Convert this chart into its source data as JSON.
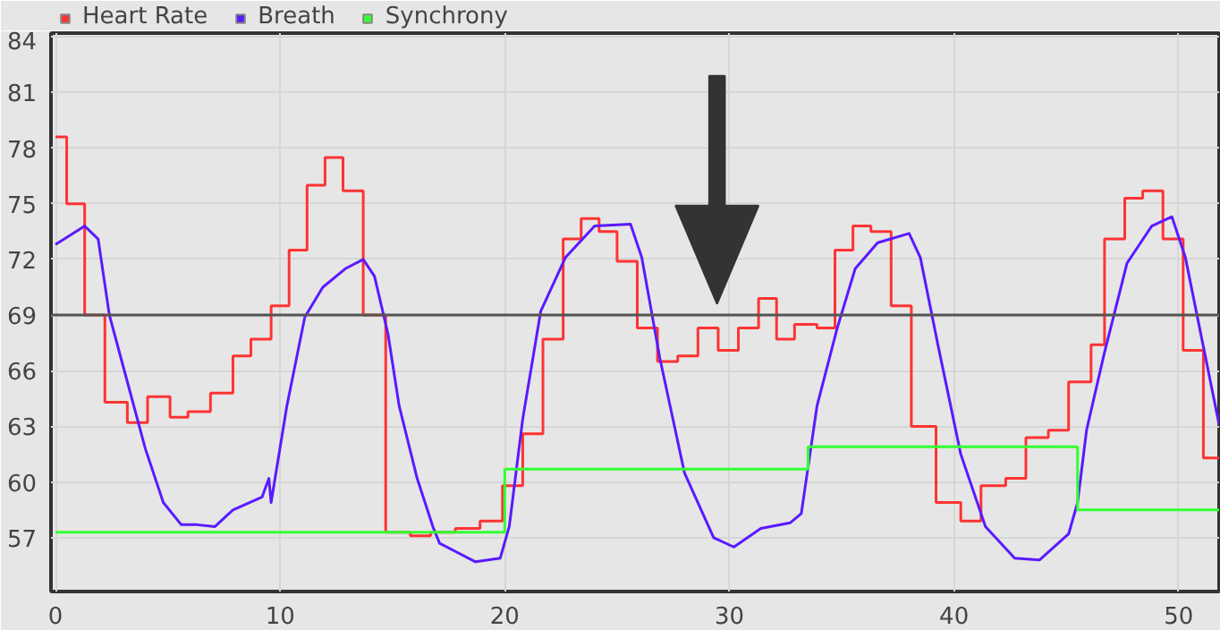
{
  "chart_data": {
    "type": "step",
    "xlim": [
      -0.2,
      51.8
    ],
    "ylim": [
      54.1,
      84.2
    ],
    "xticks": [
      0,
      10,
      20,
      30,
      40,
      50
    ],
    "yticks": [
      57,
      60,
      63,
      66,
      69,
      72,
      75,
      78,
      81,
      84
    ],
    "grid": true,
    "legend": "top left",
    "ref_lines": [
      {
        "axis": "y",
        "value": 69,
        "color": "#555555"
      }
    ],
    "series": [
      {
        "name": "Heart Rate",
        "color": "#ff3333",
        "x": [
          0.0,
          0.5,
          1.3,
          2.2,
          3.2,
          4.1,
          5.1,
          5.9,
          6.9,
          7.9,
          8.7,
          9.6,
          10.4,
          11.2,
          12.0,
          12.8,
          13.7,
          14.7,
          15.8,
          16.7,
          17.8,
          18.9,
          19.9,
          20.8,
          21.7,
          22.6,
          23.4,
          24.2,
          25.0,
          25.9,
          26.8,
          27.7,
          28.6,
          29.5,
          30.4,
          31.3,
          32.1,
          32.9,
          33.9,
          34.7,
          35.5,
          36.3,
          37.2,
          38.1,
          39.2,
          40.3,
          41.2,
          42.3,
          43.2,
          44.2,
          45.1,
          46.1,
          46.7,
          47.6,
          48.4,
          49.3,
          50.2,
          51.1,
          51.8
        ],
        "values": [
          78.6,
          75.0,
          69.0,
          64.3,
          63.2,
          64.6,
          63.5,
          63.8,
          64.8,
          66.8,
          67.7,
          69.5,
          72.5,
          76.0,
          77.5,
          75.7,
          69.0,
          57.3,
          57.1,
          57.3,
          57.5,
          57.9,
          59.8,
          62.6,
          67.7,
          73.1,
          74.2,
          73.5,
          71.9,
          68.3,
          66.5,
          66.8,
          68.3,
          67.1,
          68.3,
          69.9,
          67.7,
          68.5,
          68.3,
          72.5,
          73.8,
          73.5,
          69.5,
          63.0,
          58.9,
          57.9,
          59.8,
          60.2,
          62.4,
          62.8,
          65.4,
          67.4,
          73.1,
          75.3,
          75.7,
          73.1,
          67.1,
          61.3,
          61.3
        ]
      },
      {
        "name": "Breath",
        "color": "#5a1aff",
        "type": "line",
        "x": [
          0.0,
          1.3,
          1.9,
          2.4,
          3.2,
          4.0,
          4.8,
          5.6,
          6.3,
          7.1,
          7.9,
          9.2,
          9.5,
          9.6,
          10.3,
          11.1,
          11.9,
          12.9,
          13.7,
          14.2,
          14.8,
          15.3,
          16.1,
          16.8,
          17.1,
          18.7,
          19.8,
          20.2,
          20.8,
          21.6,
          22.7,
          24.0,
          25.6,
          26.1,
          26.9,
          28.0,
          29.3,
          30.2,
          31.4,
          32.7,
          33.2,
          33.9,
          34.8,
          35.6,
          36.6,
          38.0,
          38.5,
          39.3,
          40.3,
          41.4,
          42.7,
          43.8,
          45.1,
          45.5,
          45.9,
          46.7,
          47.7,
          48.8,
          49.7,
          50.3,
          51.1,
          51.8
        ],
        "values": [
          72.8,
          73.8,
          73.1,
          69.0,
          65.4,
          61.8,
          58.9,
          57.7,
          57.7,
          57.6,
          58.5,
          59.2,
          60.2,
          58.9,
          64.1,
          68.9,
          70.5,
          71.5,
          72.0,
          71.1,
          68.0,
          64.1,
          60.2,
          57.6,
          56.7,
          55.7,
          55.9,
          57.6,
          63.4,
          69.2,
          72.1,
          73.8,
          73.9,
          72.1,
          66.7,
          60.5,
          57.0,
          56.5,
          57.5,
          57.8,
          58.3,
          64.1,
          68.3,
          71.5,
          72.9,
          73.4,
          72.1,
          67.3,
          61.5,
          57.6,
          55.9,
          55.8,
          57.2,
          58.9,
          62.8,
          67.0,
          71.8,
          73.8,
          74.3,
          72.1,
          67.3,
          63.1
        ]
      },
      {
        "name": "Synchrony",
        "color": "#33ff33",
        "x": [
          0.0,
          20.0,
          33.5,
          45.5,
          51.8
        ],
        "values": [
          57.3,
          60.7,
          61.9,
          58.5,
          58.5
        ]
      }
    ]
  }
}
